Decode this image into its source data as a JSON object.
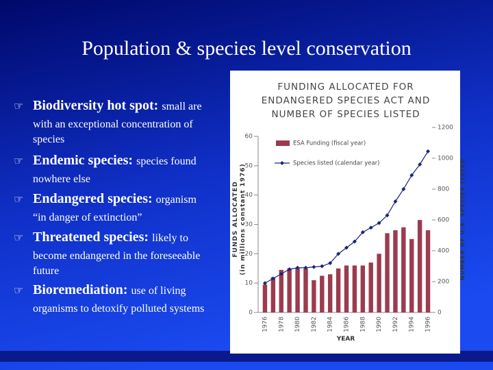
{
  "title": "Population & species level conservation",
  "bullets": [
    {
      "term": "Biodiversity hot spot:",
      "lines": [
        "small are",
        "with an exceptional concentration of",
        "species"
      ]
    },
    {
      "term": "Endemic species:",
      "lines": [
        "species found",
        "nowhere else"
      ]
    },
    {
      "term": "Endangered species:",
      "lines": [
        "organism",
        "“in danger of extinction”"
      ]
    },
    {
      "term": "Threatened species:",
      "lines": [
        "likely to",
        "become endangered in the foreseeable",
        "future"
      ]
    },
    {
      "term": "Bioremediation:",
      "lines": [
        "use of living",
        "organisms to detoxify polluted systems"
      ]
    }
  ],
  "chart_data": {
    "type": "bar_line",
    "title": [
      "FUNDING ALLOCATED FOR",
      "ENDANGERED SPECIES ACT AND",
      "NUMBER OF SPECIES LISTED"
    ],
    "y_label": [
      "FUNDS ALLOCATED",
      "(in millions constant 1976)"
    ],
    "y2_label": "NUMBER OF U.S. SPECIES LISTED",
    "x_label": "YEAR",
    "categories": [
      "1976",
      null,
      "1978",
      null,
      "1980",
      null,
      "1982",
      null,
      "1984",
      null,
      "1986",
      null,
      "1988",
      null,
      "1990",
      null,
      "1992",
      null,
      "1994",
      null,
      "1996"
    ],
    "series": [
      {
        "name": "ESA Funding (fiscal year)",
        "type": "bar",
        "color": "#9c3b4f",
        "values": [
          9.5,
          12,
          14.5,
          15,
          15,
          15,
          11,
          12.5,
          13,
          15,
          16,
          16,
          16,
          17,
          20,
          27,
          28,
          29,
          25,
          31.5,
          28
        ]
      },
      {
        "name": "Species listed (calendar year)",
        "type": "line",
        "axis": "y2",
        "color": "#1a237e",
        "values": [
          190,
          220,
          250,
          280,
          290,
          290,
          295,
          300,
          320,
          380,
          420,
          460,
          520,
          550,
          580,
          630,
          720,
          800,
          890,
          960,
          1045
        ]
      }
    ],
    "ylim": [
      0,
      60
    ],
    "yticks": [
      0,
      10,
      20,
      30,
      40,
      50,
      60
    ],
    "y2lim": [
      0,
      1200
    ],
    "y2ticks": [
      0,
      200,
      400,
      600,
      800,
      1000,
      1200
    ]
  }
}
